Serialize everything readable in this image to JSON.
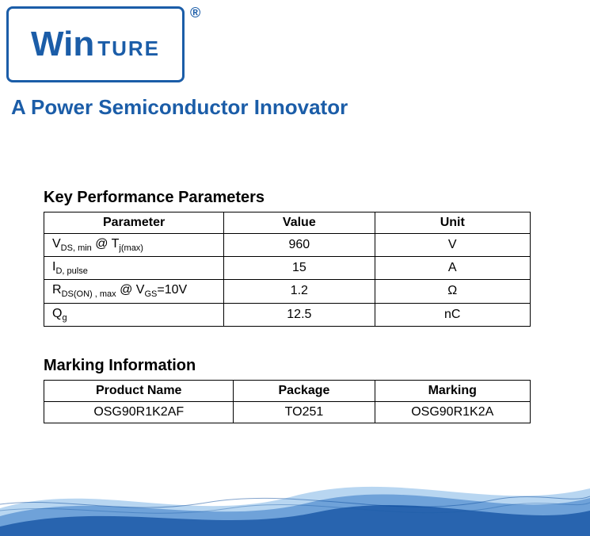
{
  "logo": {
    "win": "Win",
    "ture": "TURE",
    "registered": "®"
  },
  "tagline": "A Power Semiconductor Innovator",
  "perf_table": {
    "title": "Key Performance Parameters",
    "headers": [
      "Parameter",
      "Value",
      "Unit"
    ],
    "col_widths": [
      "37%",
      "31%",
      "32%"
    ],
    "rows": [
      {
        "param_html": "V<span class='sub'>DS, min</span> @ T<span class='sub'>j(max)</span>",
        "value": "960",
        "unit": "V"
      },
      {
        "param_html": "I<span class='sub'>D, pulse</span>",
        "value": "15",
        "unit": "A"
      },
      {
        "param_html": "R<span class='sub'>DS(ON) , max</span> @ V<span class='sub'>GS</span>=10V",
        "value": "1.2",
        "unit": "Ω"
      },
      {
        "param_html": "Q<span class='sub'>g</span>",
        "value": "12.5",
        "unit": "nC"
      }
    ]
  },
  "marking_table": {
    "title": "Marking Information",
    "headers": [
      "Product Name",
      "Package",
      "Marking"
    ],
    "col_widths": [
      "39%",
      "29%",
      "32%"
    ],
    "rows": [
      {
        "product": "OSG90R1K2AF",
        "package": "TO251",
        "marking": "OSG90R1K2A"
      }
    ]
  },
  "colors": {
    "brand": "#1b5da8",
    "wave1": "#0a4a9c",
    "wave2": "#3d7fc9",
    "wave3": "#7eb4e6"
  }
}
